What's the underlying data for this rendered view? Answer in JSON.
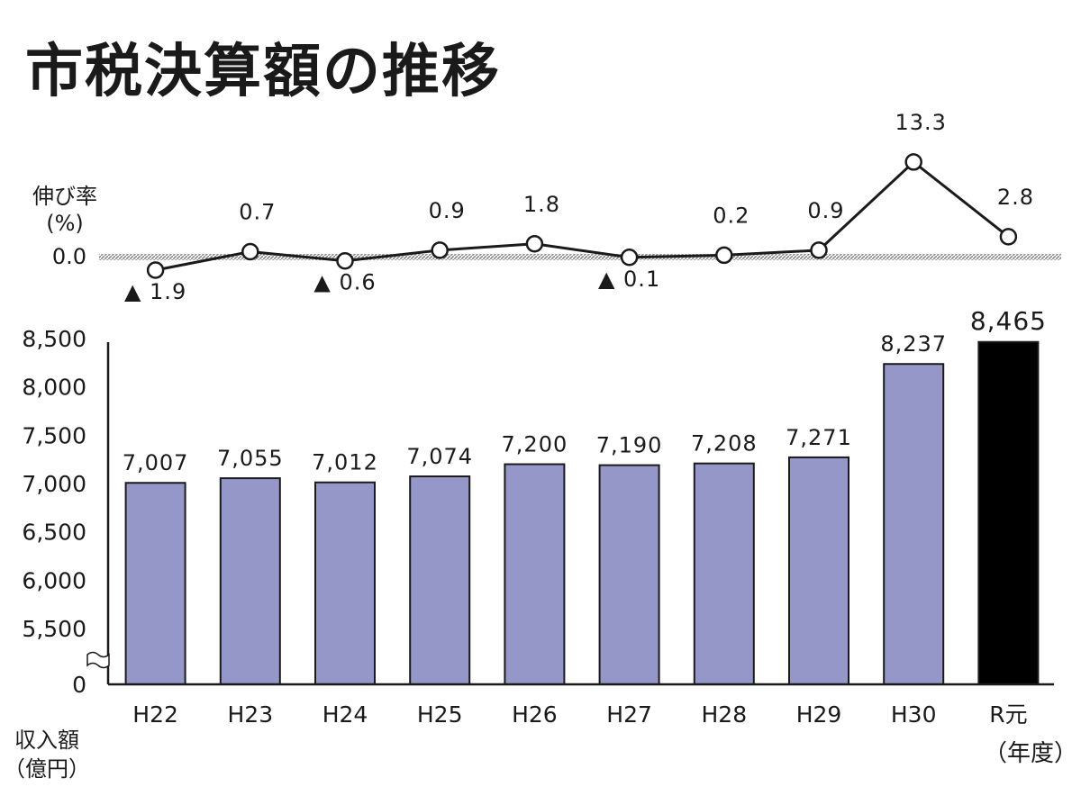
{
  "title": "市税決算額の推移",
  "chart_data": [
    {
      "type": "line",
      "ylabel": [
        "伸び率",
        "(%)"
      ],
      "zero_label": "0.0",
      "x": [
        "H22",
        "H23",
        "H24",
        "H25",
        "H26",
        "H27",
        "H28",
        "H29",
        "H30",
        "R元"
      ],
      "values": [
        -1.9,
        0.7,
        -0.6,
        0.9,
        1.8,
        -0.1,
        0.2,
        0.9,
        13.3,
        2.8
      ],
      "data_labels": [
        "▲ 1.9",
        "0.7",
        "▲ 0.6",
        "0.9",
        "1.8",
        "▲ 0.1",
        "0.2",
        "0.9",
        "13.3",
        "2.8"
      ],
      "colors": {
        "line": "#1a1a1a",
        "marker_fill": "#ffffff",
        "zero_band": "#999999"
      }
    },
    {
      "type": "bar",
      "categories": [
        "H22",
        "H23",
        "H24",
        "H25",
        "H26",
        "H27",
        "H28",
        "H29",
        "H30",
        "R元"
      ],
      "values": [
        7007,
        7055,
        7012,
        7074,
        7200,
        7190,
        7208,
        7271,
        8237,
        8465
      ],
      "data_labels": [
        "7,007",
        "7,055",
        "7,012",
        "7,074",
        "7,200",
        "7,190",
        "7,208",
        "7,271",
        "8,237",
        "8,465"
      ],
      "yticks": [
        "0",
        "5,500",
        "6,000",
        "6,500",
        "7,000",
        "7,500",
        "8,000",
        "8,500"
      ],
      "ylim": [
        5500,
        8500
      ],
      "axis_break": true,
      "ylabel": [
        "収入額",
        "（億円）"
      ],
      "xlabel": "（年度）",
      "colors": {
        "bar": "#9597c8",
        "highlight": "#000000",
        "outline": "#1a1a1a"
      },
      "highlight_index": 9
    }
  ]
}
